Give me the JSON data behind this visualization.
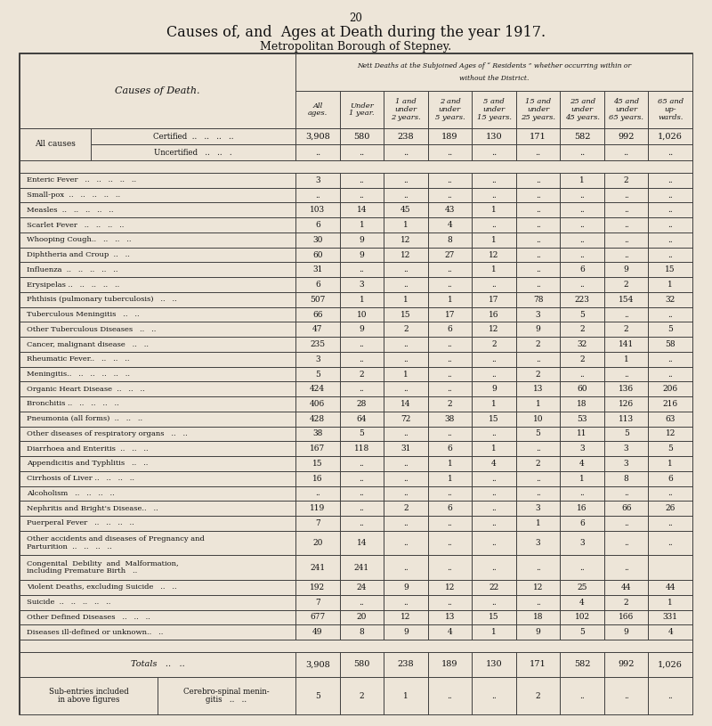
{
  "page_number": "20",
  "title": "Causes of, and  Ages at Death during the year 1917.",
  "subtitle": "Metropolitan Borough of Stepney.",
  "nett_header": "Nett Deaths at the Subjoined Ages of “ Residents ” whether occurring within or\nwithout the District.",
  "causes_label": "Causes of Death.",
  "col_headers": [
    "All\nages.",
    "Under\n1 year.",
    "1 and\nunder\n2 years.",
    "2 and\nunder\n5 years.",
    "5 and\nunder\n15 years.",
    "15 and\nunder\n25 years.",
    "25 and\nunder\n45 years.",
    "45 and\nunder\n65 years.",
    "65 and\nup-\nwards."
  ],
  "bg_color": "#ede5d8",
  "table_bg": "#ede5d8",
  "all_causes_certified": [
    "3,908",
    "580",
    "238",
    "189",
    "130",
    "171",
    "582",
    "992",
    "1,026"
  ],
  "all_causes_uncertified": [
    "..",
    "..",
    "..",
    "..",
    "..",
    "..",
    "..",
    "..",
    ".."
  ],
  "disease_rows": [
    {
      "name": "Enteric Fever   ..   ..   ..   ..   ..",
      "vals": [
        "3",
        "..",
        "..",
        "..",
        "..",
        "..",
        "1",
        "2",
        ".."
      ]
    },
    {
      "name": "Small-pox  ..   ..   ..   ..   ..",
      "vals": [
        "..",
        "..",
        "..",
        "..",
        "..",
        "..",
        "..",
        "..",
        ".."
      ]
    },
    {
      "name": "Measles  ..   ..   ..   ..   ..",
      "vals": [
        "103",
        "14",
        "45",
        "43",
        "1",
        "..",
        "..",
        "..",
        ".."
      ]
    },
    {
      "name": "Scarlet Fever   ..   ..   ..   ..",
      "vals": [
        "6",
        "1",
        "1",
        "4",
        "..",
        "..",
        "..",
        "..",
        ".."
      ]
    },
    {
      "name": "Whooping Cough..   ..   ..   ..",
      "vals": [
        "30",
        "9",
        "12",
        "8",
        "1",
        "..",
        "..",
        "..",
        ".."
      ]
    },
    {
      "name": "Diphtheria and Croup  ..   ..",
      "vals": [
        "60",
        "9",
        "12",
        "27",
        "12",
        "..",
        "..",
        "..",
        ".."
      ]
    },
    {
      "name": "Influenza  ..   ..   ..   ..   ..",
      "vals": [
        "31",
        "..",
        "..",
        "..",
        "1",
        "..",
        "6",
        "9",
        "15"
      ]
    },
    {
      "name": "Erysipelas ..   ..   ..   ..   ..",
      "vals": [
        "6",
        "3",
        "..",
        "..",
        "..",
        "..",
        "..",
        "2",
        "1"
      ]
    },
    {
      "name": "Phthisis (pulmonary tuberculosis)   ..   ..",
      "vals": [
        "507",
        "1",
        "1",
        "1",
        "17",
        "78",
        "223",
        "154",
        "32"
      ]
    },
    {
      "name": "Tuberculous Meningitis   ..   ..",
      "vals": [
        "66",
        "10",
        "15",
        "17",
        "16",
        "3",
        "5",
        "..",
        ".."
      ]
    },
    {
      "name": "Other Tuberculous Diseases   ..   ..",
      "vals": [
        "47",
        "9",
        "2",
        "6",
        "12",
        "9",
        "2",
        "2",
        "5"
      ]
    },
    {
      "name": "Cancer, malignant disease   ..   ..",
      "vals": [
        "235",
        "..",
        "..",
        "..",
        "2",
        "2",
        "32",
        "141",
        "58"
      ]
    },
    {
      "name": "Rheumatic Fever..   ..   ..   ..",
      "vals": [
        "3",
        "..",
        "..",
        "..",
        "..",
        "..",
        "2",
        "1",
        ".."
      ]
    },
    {
      "name": "Meningitis..   ..   ..   ..   ..   ..",
      "vals": [
        "5",
        "2",
        "1",
        "..",
        "..",
        "2",
        "..",
        "..",
        ".."
      ]
    },
    {
      "name": "Organic Heart Disease  ..   ..   ..",
      "vals": [
        "424",
        "..",
        "..",
        "..",
        "9",
        "13",
        "60",
        "136",
        "206"
      ]
    },
    {
      "name": "Bronchitis ..   ..   ..   ..   ..",
      "vals": [
        "406",
        "28",
        "14",
        "2",
        "1",
        "1",
        "18",
        "126",
        "216"
      ]
    },
    {
      "name": "Pneumonia (all forms)  ..   ..   ..",
      "vals": [
        "428",
        "64",
        "72",
        "38",
        "15",
        "10",
        "53",
        "113",
        "63"
      ]
    },
    {
      "name": "Other diseases of respiratory organs   ..   ..",
      "vals": [
        "38",
        "5",
        "..",
        "..",
        "..",
        "5",
        "11",
        "5",
        "12"
      ]
    },
    {
      "name": "Diarrhoea and Enteritis  ..   ..   ..",
      "vals": [
        "167",
        "118",
        "31",
        "6",
        "1",
        "..",
        "3",
        "3",
        "5"
      ]
    },
    {
      "name": "Appendicitis and Typhlitis   ..   ..",
      "vals": [
        "15",
        "..",
        "..",
        "1",
        "4",
        "2",
        "4",
        "3",
        "1"
      ]
    },
    {
      "name": "Cirrhosis of Liver ..   ..   ..   ..",
      "vals": [
        "16",
        "..",
        "..",
        "1",
        "..",
        "..",
        "1",
        "8",
        "6"
      ]
    },
    {
      "name": "Alcoholism   ..   ..   ..   ..",
      "vals": [
        "..",
        "..",
        "..",
        "..",
        "..",
        "..",
        "..",
        "..",
        ".."
      ]
    },
    {
      "name": "Nephritis and Bright's Disease..   ..",
      "vals": [
        "119",
        "..",
        "2",
        "6",
        "..",
        "3",
        "16",
        "66",
        "26"
      ]
    },
    {
      "name": "Puerperal Fever   ..   ..   ..   ..",
      "vals": [
        "7",
        "..",
        "..",
        "..",
        "..",
        "1",
        "6",
        "..",
        ".."
      ]
    },
    {
      "name": "Other accidents and diseases of Pregnancy and\n    Parturition  ..   ..   ..   ..",
      "vals": [
        "20",
        "14",
        "..",
        "..",
        "..",
        "3",
        "3",
        "..",
        ".."
      ]
    },
    {
      "name": "Congenital  Debility  and  Malformation,\n    including Premature Birth   ..",
      "vals": [
        "241",
        "241",
        "..",
        "..",
        "..",
        "..",
        "..",
        "..",
        ""
      ]
    },
    {
      "name": "Violent Deaths, excluding Suicide   ..   ..",
      "vals": [
        "192",
        "24",
        "9",
        "12",
        "22",
        "12",
        "25",
        "44",
        "44"
      ]
    },
    {
      "name": "Suicide  ..   ..   ..   ..   ..",
      "vals": [
        "7",
        "..",
        "..",
        "..",
        "..",
        "..",
        "4",
        "2",
        "1"
      ]
    },
    {
      "name": "Other Defined Diseases   ..   ..   ..",
      "vals": [
        "677",
        "20",
        "12",
        "13",
        "15",
        "18",
        "102",
        "166",
        "331"
      ]
    },
    {
      "name": "Diseases ill-defined or unknown..   ..",
      "vals": [
        "49",
        "8",
        "9",
        "4",
        "1",
        "9",
        "5",
        "9",
        "4"
      ]
    }
  ],
  "totals": [
    "3,908",
    "580",
    "238",
    "189",
    "130",
    "171",
    "582",
    "992",
    "1,026"
  ],
  "sub_entry_left": "Sub-entries included\nin above figures",
  "sub_entry_mid": "Cerebro-spinal menin-\ngitis   ..   ..",
  "sub_entry_vals": [
    "5",
    "2",
    "1",
    "..",
    "..",
    "2",
    "..",
    "..",
    ".."
  ]
}
